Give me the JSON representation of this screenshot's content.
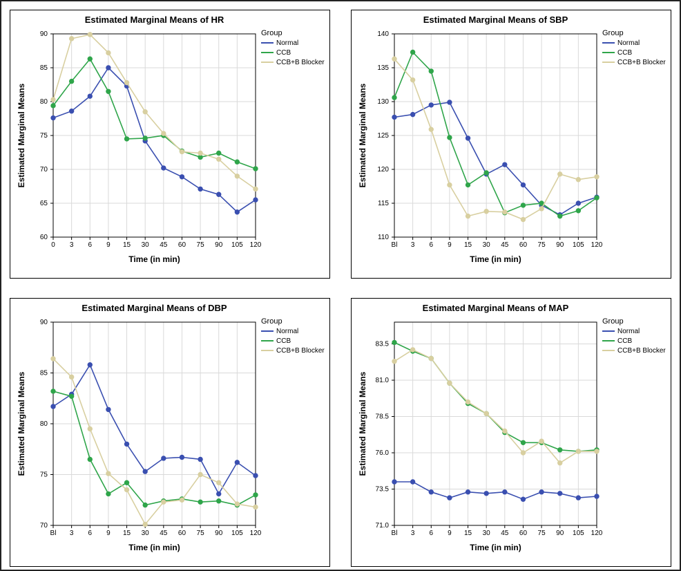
{
  "global": {
    "xlabel": "Time (in min)",
    "ylabel": "Estimated Marginal Means",
    "legend_title": "Group",
    "series_labels": [
      "Normal",
      "CCB",
      "CCB+B Blocker"
    ],
    "series_colors": [
      "#3a4fb0",
      "#2fa54a",
      "#d8cfa0"
    ],
    "grid_color": "#d9d9d9",
    "grid_on": true,
    "axis_color": "#000000",
    "title_fontsize": 13,
    "title_fontweight": "bold",
    "label_fontsize": 12,
    "tick_fontsize": 10,
    "legend_fontsize": 10,
    "line_width": 1.6,
    "marker": "circle",
    "marker_size": 3.2,
    "background_color": "#ffffff",
    "aspect_per_panel": "455x378"
  },
  "charts": [
    {
      "key": "hr",
      "title": "Estimated Marginal Means of HR",
      "categories": [
        "0",
        "3",
        "6",
        "9",
        "15",
        "30",
        "45",
        "60",
        "75",
        "90",
        "105",
        "120"
      ],
      "ylim": [
        60,
        90
      ],
      "ytick_step": 5,
      "series": [
        [
          77.6,
          78.6,
          80.8,
          85.0,
          82.3,
          74.2,
          70.2,
          68.9,
          67.1,
          66.3,
          63.7,
          65.5
        ],
        [
          79.4,
          83.0,
          86.3,
          81.5,
          74.5,
          74.6,
          75.0,
          72.7,
          71.8,
          72.4,
          71.1,
          70.1
        ],
        [
          80.3,
          89.3,
          89.9,
          87.2,
          82.8,
          78.5,
          75.3,
          72.6,
          72.4,
          71.5,
          69.0,
          67.1
        ]
      ]
    },
    {
      "key": "sbp",
      "title": "Estimated Marginal Means of SBP",
      "categories": [
        "Bl",
        "3",
        "6",
        "9",
        "15",
        "30",
        "45",
        "60",
        "75",
        "90",
        "105",
        "120"
      ],
      "ylim": [
        110,
        140
      ],
      "ytick_step": 5,
      "series": [
        [
          127.7,
          128.1,
          129.5,
          129.9,
          124.6,
          119.3,
          120.7,
          117.7,
          114.7,
          113.3,
          115.0,
          115.9
        ],
        [
          130.6,
          137.3,
          134.5,
          124.7,
          117.7,
          119.5,
          113.6,
          114.7,
          115.0,
          113.1,
          113.9,
          115.8
        ],
        [
          136.3,
          133.2,
          125.9,
          117.7,
          113.1,
          113.8,
          113.7,
          112.6,
          114.2,
          119.3,
          118.5,
          118.9
        ]
      ]
    },
    {
      "key": "dbp",
      "title": "Estimated Marginal Means of DBP",
      "categories": [
        "Bl",
        "3",
        "6",
        "9",
        "15",
        "30",
        "45",
        "60",
        "75",
        "90",
        "105",
        "120"
      ],
      "ylim": [
        70,
        90
      ],
      "ytick_step": 5,
      "series": [
        [
          81.7,
          82.9,
          85.8,
          81.4,
          78.0,
          75.3,
          76.6,
          76.7,
          76.5,
          73.1,
          76.2,
          74.9
        ],
        [
          83.2,
          82.7,
          76.5,
          73.1,
          74.2,
          72.0,
          72.4,
          72.6,
          72.3,
          72.4,
          72.0,
          73.0
        ],
        [
          86.4,
          84.6,
          79.5,
          75.1,
          73.5,
          70.1,
          72.3,
          72.5,
          75.0,
          74.2,
          72.1,
          71.8
        ]
      ]
    },
    {
      "key": "map",
      "title": "Estimated Marginal Means of MAP",
      "categories": [
        "Bl",
        "3",
        "6",
        "9",
        "15",
        "30",
        "45",
        "60",
        "75",
        "90",
        "105",
        "120"
      ],
      "ylim": [
        71,
        85
      ],
      "ytick_step": 2.5,
      "ytick_format": "0.0",
      "series": [
        [
          74.0,
          74.0,
          73.3,
          72.9,
          73.3,
          73.2,
          73.3,
          72.8,
          73.3,
          73.2,
          72.9,
          73.0
        ],
        [
          83.6,
          83.0,
          82.5,
          80.8,
          79.4,
          78.7,
          77.4,
          76.7,
          76.7,
          76.2,
          76.1,
          76.2
        ],
        [
          82.3,
          83.1,
          82.5,
          80.8,
          79.5,
          78.7,
          77.5,
          76.0,
          76.8,
          75.3,
          76.1,
          76.1
        ]
      ]
    }
  ]
}
